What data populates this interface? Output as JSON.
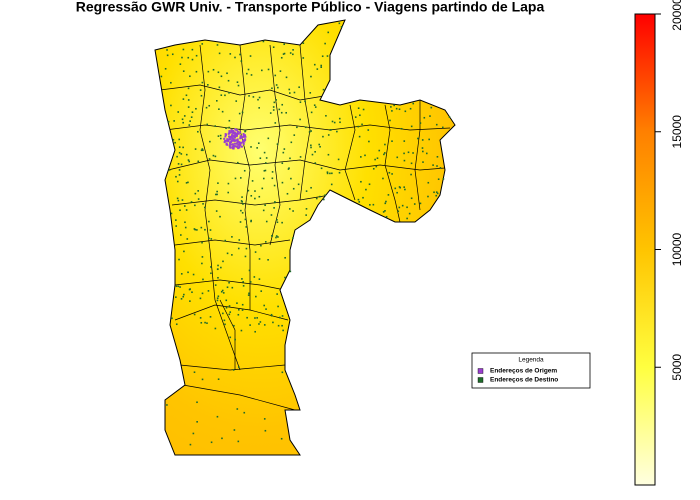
{
  "title": "Regressão GWR Univ. - Transporte Público - Viagens partindo de Lapa",
  "legend": {
    "title": "Legenda",
    "items": [
      {
        "label": "Endereços de Origem",
        "color": "#9a3fd0"
      },
      {
        "label": "Endereços de Destino",
        "color": "#1f6b2a"
      }
    ]
  },
  "colorbar": {
    "lim": [
      0,
      20000
    ],
    "ticks": [
      5000,
      10000,
      15000,
      20000
    ],
    "colors": [
      "#ffffe0",
      "#ffff40",
      "#ffc400",
      "#ff8000",
      "#ff0000"
    ]
  }
}
